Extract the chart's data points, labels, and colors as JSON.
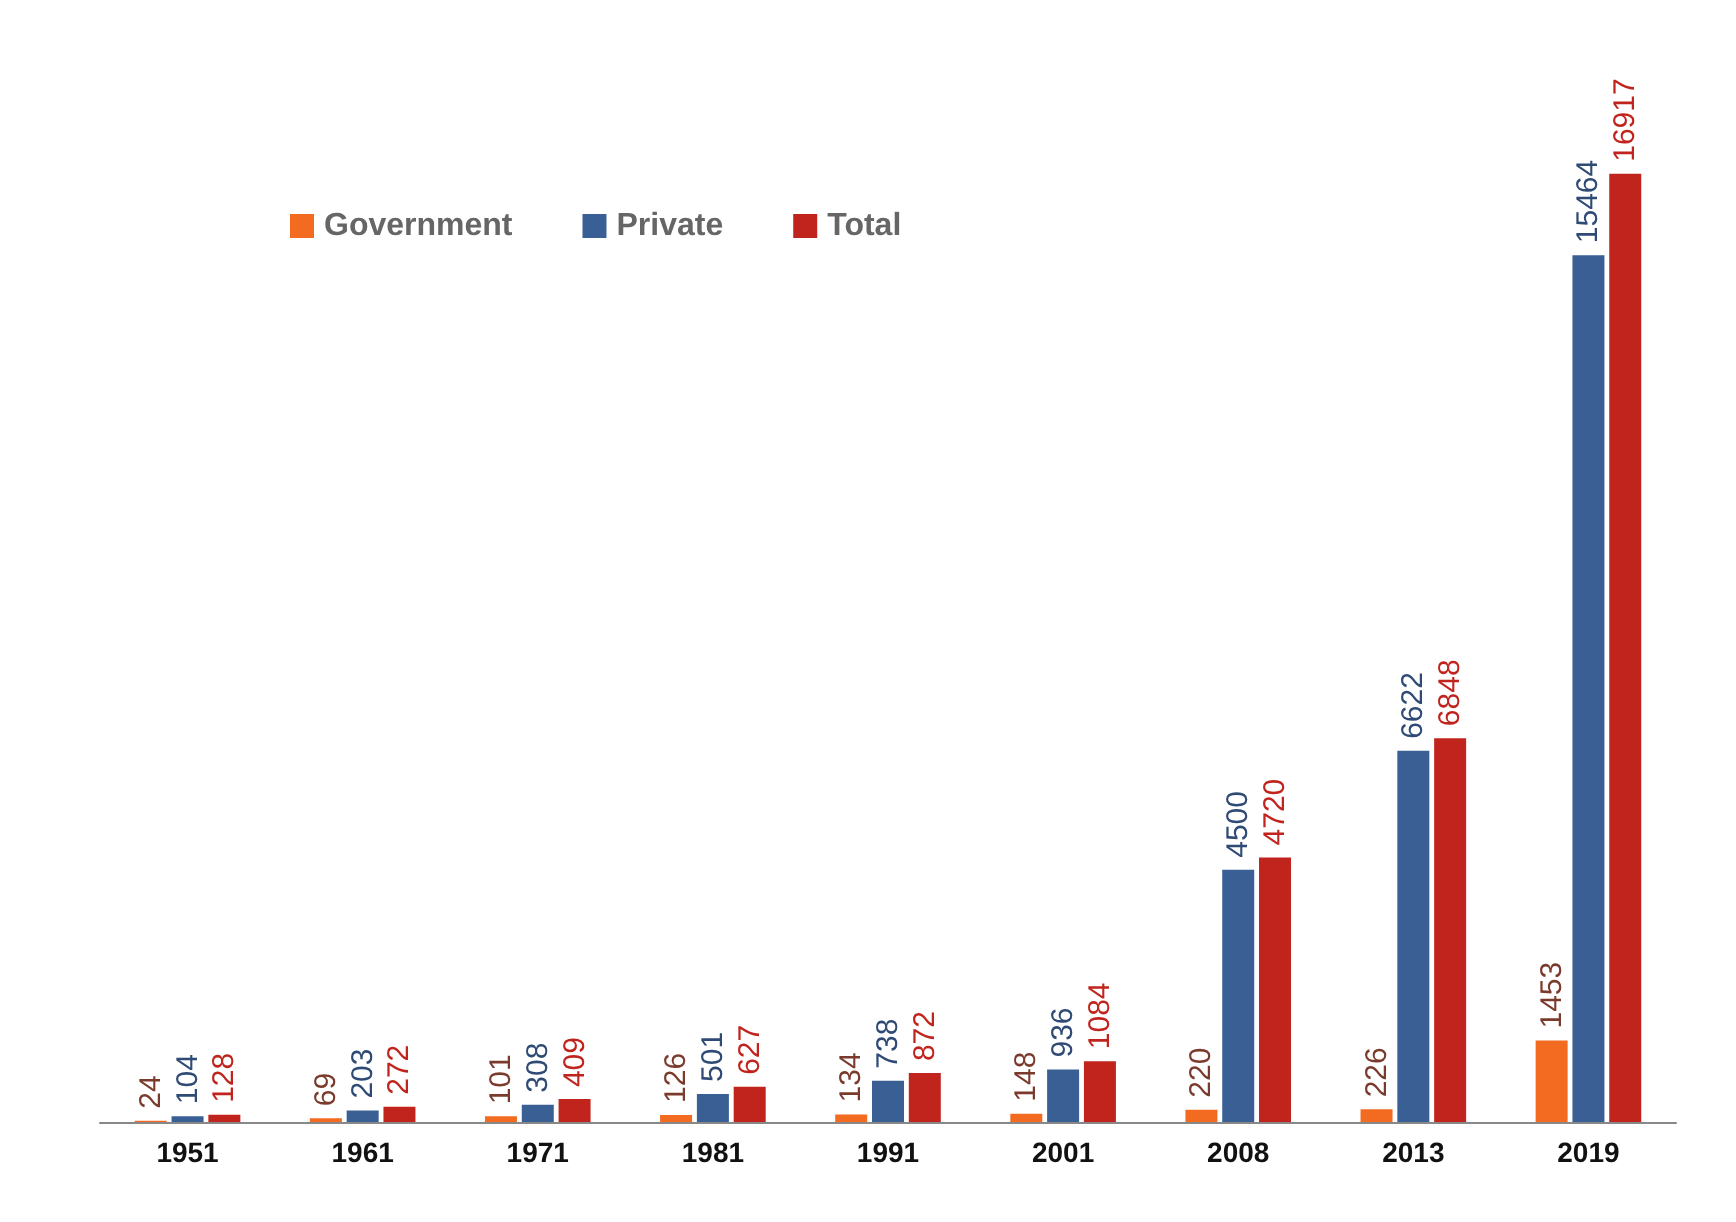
{
  "chart_data": {
    "type": "bar",
    "categories": [
      "1951",
      "1961",
      "1971",
      "1981",
      "1991",
      "2001",
      "2008",
      "2013",
      "2019"
    ],
    "series": [
      {
        "name": "Government",
        "color": "#f26b21",
        "values": [
          24,
          69,
          101,
          126,
          134,
          148,
          220,
          226,
          1453
        ]
      },
      {
        "name": "Private",
        "color": "#3a5f94",
        "values": [
          104,
          203,
          308,
          501,
          738,
          936,
          4500,
          6622,
          15464
        ]
      },
      {
        "name": "Total",
        "color": "#c0241c",
        "values": [
          128,
          272,
          409,
          627,
          872,
          1084,
          4720,
          6848,
          16917
        ]
      }
    ],
    "data_labels": true,
    "legend": "top left"
  }
}
